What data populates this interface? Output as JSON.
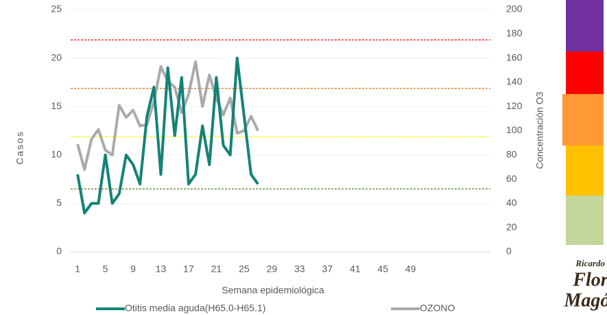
{
  "chart_data": {
    "type": "line",
    "x_label": "Semana epidemiológica",
    "y_label": "Casos",
    "y2_label": "Concentración O3",
    "x": [
      1,
      2,
      3,
      4,
      5,
      6,
      7,
      8,
      9,
      10,
      11,
      12,
      13,
      14,
      15,
      16,
      17,
      18,
      19,
      20,
      21,
      22,
      23,
      24,
      25,
      26,
      27
    ],
    "series": [
      {
        "name": "Otitis media aguda(H65.0-H65.1)",
        "color": "#138376",
        "values": [
          8,
          4,
          5,
          5,
          10,
          5,
          6,
          10,
          9,
          7,
          14,
          17,
          8,
          19,
          12,
          18,
          7,
          8,
          13,
          9,
          18,
          11,
          10,
          20,
          14,
          8,
          7
        ]
      },
      {
        "name": "OZONO",
        "color": "#aaaaaa",
        "axis": "y2",
        "values": [
          89,
          68,
          93,
          101,
          84,
          80,
          121,
          111,
          117,
          104,
          105,
          124,
          153,
          141,
          136,
          115,
          130,
          157,
          120,
          146,
          127,
          113,
          127,
          98,
          100,
          112,
          100
        ]
      }
    ],
    "reference_lines": [
      {
        "value": 175,
        "color": "#ff0000"
      },
      {
        "value": 135,
        "color": "#e26b0a"
      },
      {
        "value": 95,
        "color": "#ffff00"
      },
      {
        "value": 52,
        "color": "#4f7f1f"
      }
    ],
    "xlim": [
      0,
      60.5
    ],
    "xticks": [
      1,
      5,
      9,
      13,
      17,
      21,
      25,
      29,
      33,
      37,
      41,
      45,
      49
    ],
    "ylim": [
      0,
      25
    ],
    "yticks": [
      0,
      5,
      10,
      15,
      20,
      25
    ],
    "y2lim": [
      0,
      200
    ],
    "y2ticks": [
      0,
      20,
      40,
      60,
      80,
      100,
      120,
      140,
      160,
      180,
      200
    ],
    "grid": true,
    "legend": "bottom",
    "logo": [
      "Ricardo",
      "Flores",
      "Magón"
    ]
  }
}
